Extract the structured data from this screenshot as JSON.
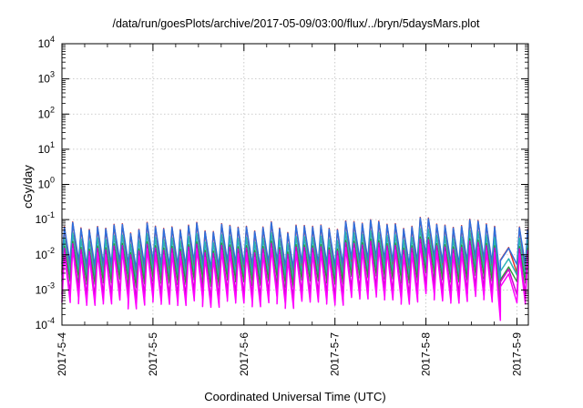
{
  "chart_data": {
    "type": "line",
    "title": "/data/run/goesPlots/archive/2017-05-09/03:00/flux/../bryn/5daysMars.plot",
    "xlabel": "Coordinated Universal Time (UTC)",
    "ylabel": "cGy/day",
    "x_range": [
      "2017-05-04T00:00",
      "2017-05-09T03:00"
    ],
    "x_ticks": [
      "2017-5-4",
      "2017-5-5",
      "2017-5-6",
      "2017-5-7",
      "2017-5-8",
      "2017-5-9"
    ],
    "y_scale": "log",
    "ylim": [
      0.0001,
      10000
    ],
    "y_ticks": [
      {
        "base": "10",
        "exp": "-4"
      },
      {
        "base": "10",
        "exp": "-3"
      },
      {
        "base": "10",
        "exp": "-2"
      },
      {
        "base": "10",
        "exp": "-1"
      },
      {
        "base": "10",
        "exp": "0"
      },
      {
        "base": "10",
        "exp": "1"
      },
      {
        "base": "10",
        "exp": "2"
      },
      {
        "base": "10",
        "exp": "3"
      },
      {
        "base": "10",
        "exp": "4"
      }
    ],
    "grid": true,
    "legend": "none",
    "sawtooth": {
      "peaks_per_day": 11,
      "sawtooth_end": "2017-05-08T18:00",
      "recovery_start": "2017-05-09T00:00",
      "ramp_fraction": 0.3,
      "peak_base": 0.05,
      "peak_variation": 0.02,
      "peak_day3_bump": 0.03,
      "dip": {
        "center": "2017-05-08T20:00",
        "halfwidth_hours": 3,
        "min_factor": 0.09
      }
    },
    "series": [
      {
        "color": "#e03030",
        "scale": 1.25,
        "trough_ratio": 0.05,
        "width": 1.5
      },
      {
        "color": "#2f6fdc",
        "scale": 1.2,
        "trough_ratio": 0.09,
        "width": 1.5
      },
      {
        "color": "#2bb3b5",
        "scale": 0.6,
        "trough_ratio": 0.09,
        "width": 1.5
      },
      {
        "color": "#2e9a3a",
        "scale": 0.35,
        "trough_ratio": 0.1,
        "width": 1.4
      },
      {
        "color": "#d000d0",
        "scale": 0.3,
        "trough_ratio": 0.05,
        "width": 1.5
      },
      {
        "color": "#ff00ff",
        "scale": 0.22,
        "trough_ratio": 0.04,
        "width": 1.5
      }
    ]
  }
}
